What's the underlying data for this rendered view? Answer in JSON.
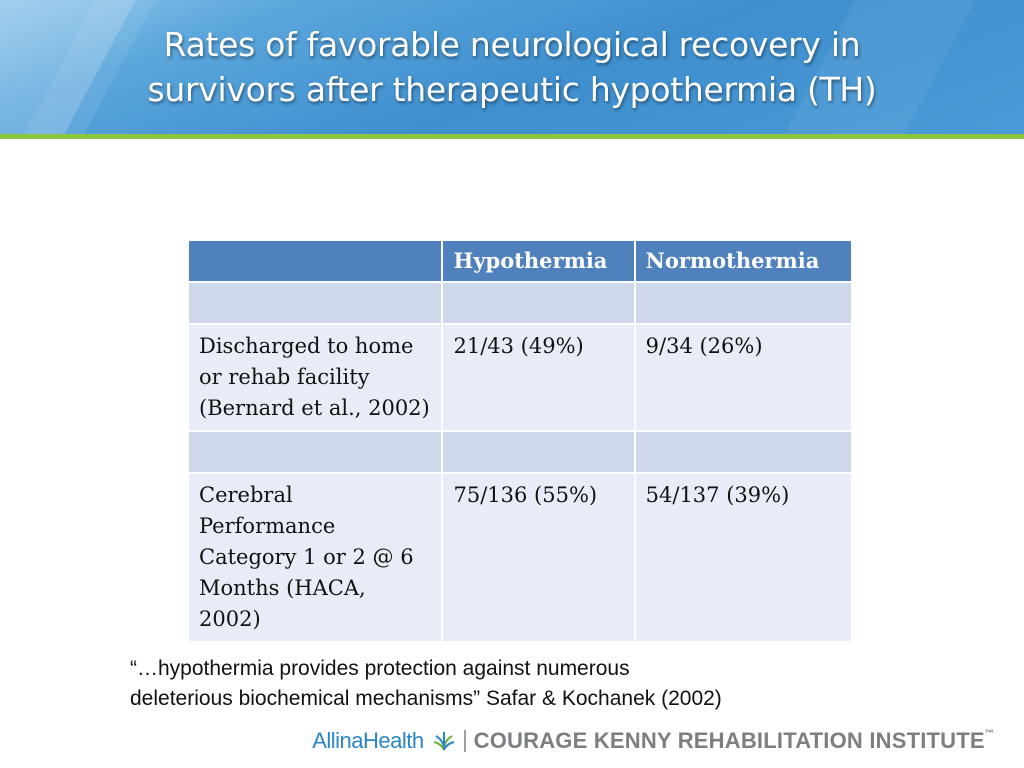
{
  "title": {
    "line1": "Rates of favorable neurological recovery in",
    "line2": "survivors  after therapeutic hypothermia (TH)"
  },
  "table": {
    "headers": [
      "",
      "Hypothermia",
      "Normothermia"
    ],
    "rows": [
      {
        "label": "",
        "hypothermia": "",
        "normothermia": ""
      },
      {
        "label": "Discharged to home or rehab facility (Bernard et al., 2002)",
        "hypothermia": "21/43 (49%)",
        "normothermia": "9/34 (26%)"
      },
      {
        "label": "",
        "hypothermia": "",
        "normothermia": ""
      },
      {
        "label": "Cerebral Performance Category 1 or 2 @ 6 Months (HACA, 2002)",
        "hypothermia": "75/136 (55%)",
        "normothermia": "54/137 (39%)"
      }
    ]
  },
  "quote": {
    "line1": "“…hypothermia provides protection against numerous",
    "line2": "deleterious biochemical mechanisms”  Safar & Kochanek (2002)"
  },
  "footer": {
    "brand_allina_a": "Allina",
    "brand_allina_b": "Health",
    "brand_ck": "COURAGE KENNY REHABILITATION INSTITUTE",
    "trademark": "™",
    "icon": "leaf-cluster-icon"
  },
  "colors": {
    "title_banner": "#3f8fcf",
    "accent_rule": "#8cc63f",
    "table_header": "#4f81bd",
    "table_band_dark": "#cfd7ea",
    "table_band_light": "#e8ecf6"
  }
}
